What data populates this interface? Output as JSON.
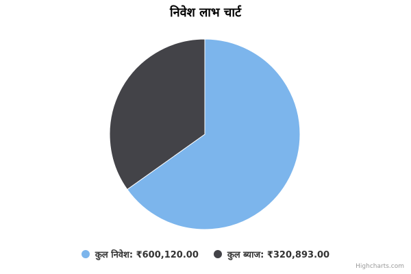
{
  "chart_data": {
    "type": "pie",
    "title": "निवेश लाभ चार्ट",
    "slices": [
      {
        "name": "कुल निवेश",
        "value": 600120.0,
        "label": "कुल निवेश: ₹600,120.00",
        "color": "#7cb5ec"
      },
      {
        "name": "कुल ब्याज",
        "value": 320893.0,
        "label": "कुल ब्याज: ₹320,893.00",
        "color": "#434348"
      }
    ],
    "legend_position": "bottom"
  },
  "credits": "Highcharts.com"
}
